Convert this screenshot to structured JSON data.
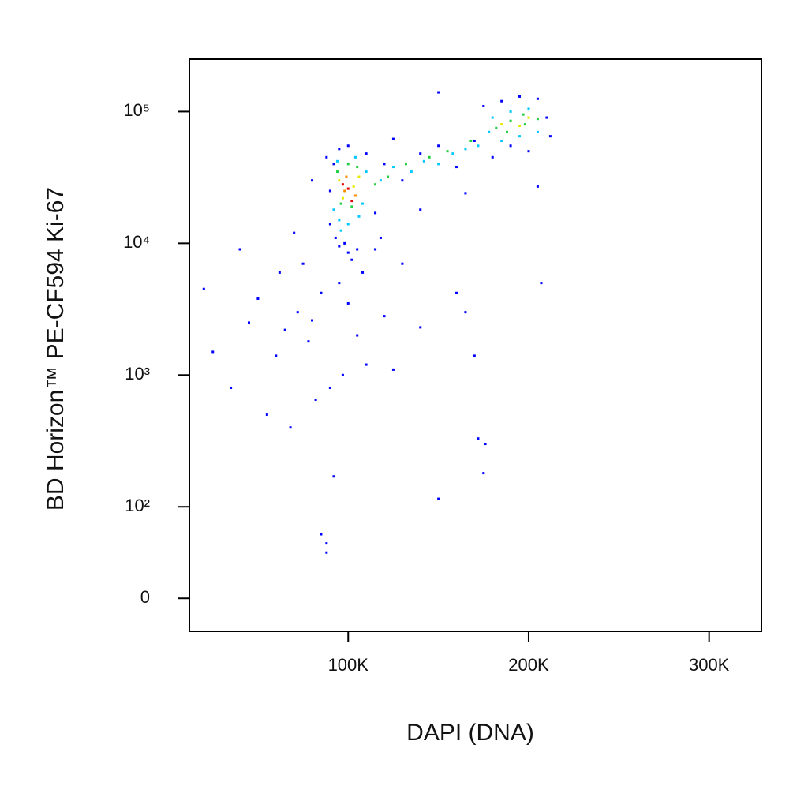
{
  "chart_data": {
    "type": "scatter",
    "x_label": "DAPI (DNA)",
    "y_label": "BD Horizon™ PE-CF594 Ki-67",
    "yscale": "biexponential",
    "xlim": [
      12000,
      329000
    ],
    "ylim": [
      -36,
      250000
    ],
    "xticks": [
      {
        "value": 100000,
        "label": "100K"
      },
      {
        "value": 200000,
        "label": "200K"
      },
      {
        "value": 300000,
        "label": "300K"
      }
    ],
    "yticks": [
      0,
      {
        "value": 100,
        "label": "10²"
      },
      {
        "value": 1000,
        "label": "10³"
      },
      {
        "value": 10000,
        "label": "10⁴"
      },
      {
        "value": 100000,
        "label": "10⁵"
      }
    ],
    "series": [
      {
        "color": "#0000ff",
        "x": [
          20000,
          25000,
          35000,
          40000,
          45000,
          50000,
          55000,
          60000,
          62000,
          65000,
          68000,
          70000,
          72000,
          75000,
          78000,
          80000,
          82000,
          85000,
          88000,
          90000,
          92000,
          95000,
          97000,
          100000,
          102000,
          105000,
          108000,
          110000,
          115000,
          120000,
          125000,
          130000,
          140000,
          150000,
          160000,
          165000,
          170000,
          172000,
          175000,
          176000,
          205000,
          207000,
          85000,
          88000,
          95000,
          90000,
          93000,
          100000,
          98000,
          105000,
          110000,
          100000,
          95000,
          120000,
          130000,
          140000,
          150000,
          160000,
          170000,
          175000,
          185000,
          195000,
          205000,
          210000,
          212000,
          190000,
          200000,
          180000,
          150000,
          125000,
          115000,
          118000,
          140000,
          165000,
          90000,
          92000,
          88000,
          80000
        ],
        "values": [
          4500,
          1500,
          800,
          9000,
          2500,
          3800,
          500,
          1400,
          6000,
          2200,
          400,
          12000,
          3000,
          7000,
          1800,
          2600,
          650,
          4200,
          60,
          800,
          170,
          5000,
          1000,
          3500,
          7500,
          2000,
          6000,
          1200,
          9000,
          2800,
          1100,
          7000,
          2300,
          115,
          4200,
          3000,
          1400,
          330,
          180,
          300,
          27000,
          5000,
          70,
          50,
          9500,
          14000,
          11000,
          8500,
          10000,
          9000,
          48000,
          55000,
          52000,
          40000,
          30000,
          48000,
          55000,
          38000,
          60000,
          110000,
          120000,
          130000,
          125000,
          90000,
          65000,
          55000,
          50000,
          45000,
          140000,
          62000,
          17000,
          11000,
          18000,
          24000,
          25000,
          40000,
          45000,
          30000
        ]
      },
      {
        "color": "#00c8ff",
        "x": [
          92000,
          95000,
          100000,
          106000,
          94000,
          104000,
          110000,
          118000,
          125000,
          135000,
          142000,
          150000,
          158000,
          165000,
          172000,
          180000,
          190000,
          200000,
          205000,
          195000,
          185000,
          178000,
          96000,
          108000
        ],
        "values": [
          18000,
          15000,
          14000,
          16000,
          42000,
          45000,
          35000,
          30000,
          38000,
          35000,
          42000,
          40000,
          48000,
          52000,
          55000,
          90000,
          100000,
          105000,
          70000,
          65000,
          60000,
          70000,
          12500,
          20000
        ]
      },
      {
        "color": "#20d040",
        "x": [
          96000,
          102000,
          94000,
          105000,
          115000,
          122000,
          132000,
          145000,
          155000,
          168000,
          182000,
          190000,
          198000,
          205000,
          188000,
          197000,
          100000
        ],
        "values": [
          20000,
          19000,
          35000,
          38000,
          28000,
          32000,
          40000,
          45000,
          50000,
          60000,
          75000,
          85000,
          80000,
          88000,
          70000,
          95000,
          40000
        ]
      },
      {
        "color": "#e8e800",
        "x": [
          97000,
          103000,
          95000,
          106000,
          185000,
          195000,
          200000
        ],
        "values": [
          22000,
          27000,
          30000,
          32000,
          80000,
          78000,
          90000
        ]
      },
      {
        "color": "#ff8c00",
        "x": [
          98000,
          104000,
          99000
        ],
        "values": [
          25000,
          23000,
          32000
        ]
      },
      {
        "color": "#e00000",
        "x": [
          100000,
          97000,
          102000
        ],
        "values": [
          26000,
          28000,
          21000
        ]
      }
    ]
  }
}
